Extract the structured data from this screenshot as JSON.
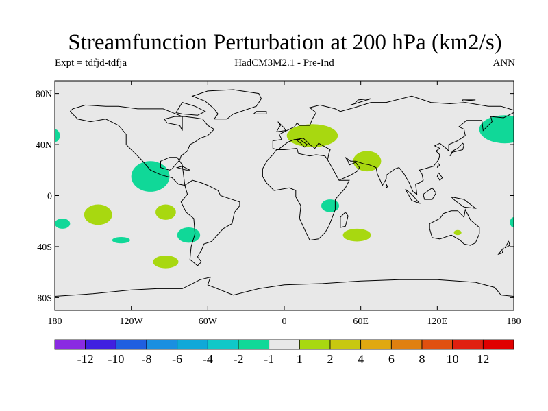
{
  "header": {
    "title": "Streamfunction Perturbation at 200 hPa (km2/s)",
    "left_text": "Expt = tdfjd-tdfja",
    "center_text": "HadCM3M2.1 - Pre-Ind",
    "right_text": "ANN"
  },
  "axes": {
    "y_ticks": [
      {
        "lat": 80,
        "label": "80N"
      },
      {
        "lat": 40,
        "label": "40N"
      },
      {
        "lat": 0,
        "label": "0"
      },
      {
        "lat": -40,
        "label": "40S"
      },
      {
        "lat": -80,
        "label": "80S"
      }
    ],
    "x_ticks": [
      {
        "lon": -180,
        "label": "180"
      },
      {
        "lon": -120,
        "label": "120W"
      },
      {
        "lon": -60,
        "label": "60W"
      },
      {
        "lon": 0,
        "label": "0"
      },
      {
        "lon": 60,
        "label": "60E"
      },
      {
        "lon": 120,
        "label": "120E"
      },
      {
        "lon": 180,
        "label": "180"
      }
    ]
  },
  "colorbar": {
    "colors": [
      "#8a2be2",
      "#4020e0",
      "#1f5fe0",
      "#1a8fe0",
      "#10a8d8",
      "#10c8c8",
      "#10d898",
      "#e8e8e8",
      "#a8d810",
      "#c8c810",
      "#e0a810",
      "#e08010",
      "#e05010",
      "#e02010",
      "#e00000"
    ],
    "labels": [
      "-12",
      "-10",
      "-8",
      "-6",
      "-4",
      "-2",
      "-1",
      "1",
      "2",
      "4",
      "6",
      "8",
      "10",
      "12"
    ]
  },
  "field_blobs": [
    {
      "lon": -180,
      "lat": 47,
      "rlon": 4,
      "rlat": 5,
      "color": "#10d898"
    },
    {
      "lon": -105,
      "lat": 15,
      "rlon": 15,
      "rlat": 12,
      "color": "#10d898"
    },
    {
      "lon": -146,
      "lat": -15,
      "rlon": 11,
      "rlat": 8,
      "color": "#a8d810"
    },
    {
      "lon": -93,
      "lat": -13,
      "rlon": 8,
      "rlat": 6,
      "color": "#a8d810"
    },
    {
      "lon": -174,
      "lat": -22,
      "rlon": 6,
      "rlat": 4,
      "color": "#10d898"
    },
    {
      "lon": -128,
      "lat": -35,
      "rlon": 7,
      "rlat": 2.5,
      "color": "#10d898"
    },
    {
      "lon": -75,
      "lat": -31,
      "rlon": 9,
      "rlat": 6,
      "color": "#10d898"
    },
    {
      "lon": -93,
      "lat": -52,
      "rlon": 10,
      "rlat": 5,
      "color": "#a8d810"
    },
    {
      "lon": 22,
      "lat": 47,
      "rlon": 20,
      "rlat": 9,
      "color": "#a8d810"
    },
    {
      "lon": 65,
      "lat": 27,
      "rlon": 11,
      "rlat": 8,
      "color": "#a8d810"
    },
    {
      "lon": 36,
      "lat": -8,
      "rlon": 7,
      "rlat": 5,
      "color": "#10d898"
    },
    {
      "lon": 57,
      "lat": -31,
      "rlon": 11,
      "rlat": 5,
      "color": "#a8d810"
    },
    {
      "lon": 173,
      "lat": 52,
      "rlon": 20,
      "rlat": 11,
      "color": "#10d898"
    },
    {
      "lon": 136,
      "lat": -29,
      "rlon": 3,
      "rlat": 2,
      "color": "#a8d810"
    },
    {
      "lon": 180,
      "lat": -21,
      "rlon": 3,
      "rlat": 4,
      "color": "#10d898"
    }
  ],
  "coastlines": [
    [
      [
        -168,
        66
      ],
      [
        -162,
        60
      ],
      [
        -152,
        58
      ],
      [
        -140,
        60
      ],
      [
        -130,
        55
      ],
      [
        -124,
        48
      ],
      [
        -124,
        40
      ],
      [
        -118,
        34
      ],
      [
        -112,
        28
      ],
      [
        -105,
        20
      ],
      [
        -96,
        16
      ],
      [
        -88,
        14
      ],
      [
        -83,
        9
      ],
      [
        -78,
        8
      ],
      [
        -80,
        24
      ],
      [
        -84,
        30
      ],
      [
        -90,
        30
      ],
      [
        -97,
        27
      ],
      [
        -97,
        22
      ],
      [
        -90,
        20
      ],
      [
        -88,
        21
      ],
      [
        -82,
        28
      ],
      [
        -81,
        31
      ],
      [
        -76,
        35
      ],
      [
        -74,
        40
      ],
      [
        -70,
        42
      ],
      [
        -66,
        45
      ],
      [
        -60,
        47
      ],
      [
        -55,
        52
      ],
      [
        -60,
        55
      ],
      [
        -64,
        60
      ],
      [
        -70,
        61
      ],
      [
        -78,
        62
      ],
      [
        -86,
        62
      ],
      [
        -94,
        60
      ],
      [
        -92,
        57
      ],
      [
        -82,
        55
      ],
      [
        -80,
        51
      ],
      [
        -80,
        62
      ],
      [
        -95,
        68
      ],
      [
        -115,
        68
      ],
      [
        -130,
        70
      ],
      [
        -140,
        70
      ],
      [
        -156,
        71
      ],
      [
        -166,
        68
      ],
      [
        -168,
        66
      ]
    ],
    [
      [
        -78,
        8
      ],
      [
        -76,
        1
      ],
      [
        -81,
        -5
      ],
      [
        -77,
        -13
      ],
      [
        -71,
        -18
      ],
      [
        -70,
        -30
      ],
      [
        -73,
        -40
      ],
      [
        -74,
        -50
      ],
      [
        -68,
        -55
      ],
      [
        -65,
        -52
      ],
      [
        -68,
        -48
      ],
      [
        -65,
        -43
      ],
      [
        -63,
        -38
      ],
      [
        -57,
        -36
      ],
      [
        -48,
        -26
      ],
      [
        -41,
        -22
      ],
      [
        -39,
        -13
      ],
      [
        -35,
        -8
      ],
      [
        -35,
        -5
      ],
      [
        -44,
        -2
      ],
      [
        -50,
        0
      ],
      [
        -52,
        4
      ],
      [
        -60,
        8
      ],
      [
        -65,
        10
      ],
      [
        -72,
        12
      ],
      [
        -78,
        8
      ]
    ],
    [
      [
        -17,
        15
      ],
      [
        -17,
        21
      ],
      [
        -13,
        28
      ],
      [
        -9,
        32
      ],
      [
        -6,
        36
      ],
      [
        0,
        36
      ],
      [
        10,
        37
      ],
      [
        11,
        33
      ],
      [
        20,
        31
      ],
      [
        25,
        32
      ],
      [
        32,
        31
      ],
      [
        34,
        28
      ],
      [
        38,
        21
      ],
      [
        43,
        12
      ],
      [
        51,
        12
      ],
      [
        48,
        6
      ],
      [
        40,
        -3
      ],
      [
        40,
        -11
      ],
      [
        35,
        -24
      ],
      [
        32,
        -29
      ],
      [
        27,
        -34
      ],
      [
        20,
        -35
      ],
      [
        18,
        -31
      ],
      [
        12,
        -18
      ],
      [
        13,
        -8
      ],
      [
        9,
        -1
      ],
      [
        9,
        4
      ],
      [
        4,
        6
      ],
      [
        -8,
        4
      ],
      [
        -14,
        10
      ],
      [
        -17,
        15
      ]
    ],
    [
      [
        -9,
        37
      ],
      [
        -9,
        43
      ],
      [
        -2,
        44
      ],
      [
        -4,
        48
      ],
      [
        2,
        51
      ],
      [
        8,
        54
      ],
      [
        10,
        57
      ],
      [
        12,
        55
      ],
      [
        20,
        55
      ],
      [
        22,
        60
      ],
      [
        25,
        65
      ],
      [
        20,
        69
      ],
      [
        28,
        71
      ],
      [
        40,
        68
      ],
      [
        44,
        66
      ],
      [
        55,
        69
      ],
      [
        68,
        73
      ],
      [
        80,
        73
      ],
      [
        100,
        78
      ],
      [
        115,
        73
      ],
      [
        130,
        72
      ],
      [
        142,
        73
      ],
      [
        160,
        70
      ],
      [
        170,
        70
      ],
      [
        180,
        67
      ]
    ],
    [
      [
        -9,
        37
      ],
      [
        -5,
        36
      ],
      [
        3,
        42
      ],
      [
        8,
        44
      ],
      [
        12,
        44
      ],
      [
        18,
        40
      ],
      [
        16,
        38
      ],
      [
        13,
        41
      ],
      [
        9,
        44
      ],
      [
        15,
        45
      ],
      [
        20,
        40
      ],
      [
        24,
        37
      ],
      [
        27,
        41
      ],
      [
        36,
        36
      ],
      [
        35,
        33
      ],
      [
        34,
        28
      ]
    ],
    [
      [
        43,
        12
      ],
      [
        45,
        13
      ],
      [
        52,
        16
      ],
      [
        57,
        19
      ],
      [
        59,
        22
      ],
      [
        56,
        26
      ],
      [
        51,
        24
      ],
      [
        50,
        27
      ],
      [
        48,
        30
      ],
      [
        52,
        27
      ],
      [
        56,
        27
      ],
      [
        62,
        25
      ],
      [
        67,
        24
      ],
      [
        72,
        22
      ],
      [
        73,
        17
      ],
      [
        77,
        8
      ],
      [
        80,
        13
      ],
      [
        80,
        16
      ],
      [
        87,
        21
      ],
      [
        90,
        22
      ],
      [
        94,
        17
      ],
      [
        98,
        10
      ],
      [
        101,
        3
      ],
      [
        104,
        1
      ],
      [
        103,
        9
      ],
      [
        106,
        10
      ],
      [
        109,
        12
      ],
      [
        108,
        17
      ],
      [
        106,
        20
      ],
      [
        110,
        21
      ],
      [
        117,
        23
      ],
      [
        121,
        28
      ],
      [
        122,
        32
      ],
      [
        119,
        35
      ],
      [
        122,
        37
      ],
      [
        118,
        39
      ],
      [
        122,
        41
      ],
      [
        127,
        37
      ],
      [
        129,
        35
      ],
      [
        129,
        40
      ],
      [
        136,
        43
      ],
      [
        142,
        47
      ],
      [
        141,
        52
      ],
      [
        137,
        54
      ],
      [
        143,
        59
      ],
      [
        155,
        59
      ],
      [
        156,
        51
      ],
      [
        163,
        58
      ],
      [
        162,
        62
      ],
      [
        172,
        61
      ],
      [
        180,
        65
      ]
    ],
    [
      [
        114,
        -22
      ],
      [
        114,
        -26
      ],
      [
        116,
        -33
      ],
      [
        122,
        -34
      ],
      [
        131,
        -31
      ],
      [
        138,
        -35
      ],
      [
        141,
        -38
      ],
      [
        146,
        -39
      ],
      [
        150,
        -37
      ],
      [
        153,
        -30
      ],
      [
        153,
        -25
      ],
      [
        146,
        -19
      ],
      [
        142,
        -11
      ],
      [
        141,
        -17
      ],
      [
        136,
        -12
      ],
      [
        131,
        -12
      ],
      [
        125,
        -14
      ],
      [
        122,
        -18
      ],
      [
        114,
        -22
      ]
    ],
    [
      [
        -180,
        -79
      ],
      [
        -150,
        -77
      ],
      [
        -120,
        -74
      ],
      [
        -100,
        -73
      ],
      [
        -80,
        -73
      ],
      [
        -66,
        -66
      ],
      [
        -58,
        -64
      ],
      [
        -60,
        -70
      ],
      [
        -40,
        -78
      ],
      [
        -20,
        -73
      ],
      [
        0,
        -70
      ],
      [
        30,
        -69
      ],
      [
        60,
        -67
      ],
      [
        90,
        -66
      ],
      [
        120,
        -66
      ],
      [
        150,
        -68
      ],
      [
        165,
        -72
      ],
      [
        170,
        -78
      ],
      [
        180,
        -79
      ]
    ],
    [
      [
        -55,
        60
      ],
      [
        -45,
        60
      ],
      [
        -40,
        64
      ],
      [
        -22,
        70
      ],
      [
        -18,
        76
      ],
      [
        -20,
        80
      ],
      [
        -40,
        83
      ],
      [
        -60,
        82
      ],
      [
        -72,
        78
      ],
      [
        -62,
        74
      ],
      [
        -55,
        68
      ],
      [
        -52,
        64
      ],
      [
        -55,
        60
      ]
    ],
    [
      [
        44,
        -25
      ],
      [
        48,
        -24
      ],
      [
        50,
        -16
      ],
      [
        48,
        -13
      ],
      [
        44,
        -17
      ],
      [
        44,
        -25
      ]
    ],
    [
      [
        -6,
        50
      ],
      [
        1,
        51
      ],
      [
        0,
        53
      ],
      [
        -3,
        56
      ],
      [
        -5,
        58
      ],
      [
        -3,
        55
      ],
      [
        -5,
        52
      ],
      [
        -6,
        50
      ]
    ],
    [
      [
        130,
        31
      ],
      [
        132,
        34
      ],
      [
        136,
        35
      ],
      [
        140,
        36
      ],
      [
        141,
        40
      ],
      [
        140,
        41
      ],
      [
        136,
        37
      ],
      [
        132,
        35
      ],
      [
        130,
        31
      ]
    ],
    [
      [
        95,
        5
      ],
      [
        100,
        1
      ],
      [
        106,
        -6
      ],
      [
        100,
        -4
      ],
      [
        95,
        5
      ]
    ],
    [
      [
        109,
        1
      ],
      [
        116,
        6
      ],
      [
        119,
        2
      ],
      [
        116,
        -3
      ],
      [
        110,
        -3
      ],
      [
        109,
        1
      ]
    ],
    [
      [
        131,
        -1
      ],
      [
        141,
        -3
      ],
      [
        150,
        -10
      ],
      [
        141,
        -9
      ],
      [
        134,
        -4
      ],
      [
        131,
        -1
      ]
    ],
    [
      [
        -85,
        65
      ],
      [
        -80,
        73
      ],
      [
        -70,
        70
      ],
      [
        -62,
        66
      ],
      [
        -68,
        63
      ],
      [
        -80,
        64
      ],
      [
        -85,
        65
      ]
    ],
    [
      [
        -24,
        64
      ],
      [
        -22,
        66
      ],
      [
        -14,
        66
      ],
      [
        -14,
        64
      ],
      [
        -24,
        64
      ]
    ],
    [
      [
        173,
        -41
      ],
      [
        177,
        -39
      ],
      [
        176,
        -36
      ],
      [
        173,
        -41
      ]
    ],
    [
      [
        172,
        -41
      ],
      [
        168,
        -46
      ],
      [
        171,
        -45
      ],
      [
        172,
        -41
      ]
    ],
    [
      [
        -80,
        23
      ],
      [
        -74,
        20
      ],
      [
        -77,
        20
      ],
      [
        -84,
        22
      ],
      [
        -80,
        23
      ]
    ],
    [
      [
        121,
        18
      ],
      [
        124,
        14
      ],
      [
        122,
        12
      ],
      [
        120,
        15
      ],
      [
        121,
        18
      ]
    ],
    [
      [
        80,
        9
      ],
      [
        81,
        7
      ],
      [
        80,
        6
      ],
      [
        80,
        9
      ]
    ],
    [
      [
        120,
        22
      ],
      [
        121,
        25
      ],
      [
        122,
        24
      ],
      [
        120,
        22
      ]
    ],
    [
      [
        140,
        74
      ],
      [
        150,
        75
      ],
      [
        140,
        75
      ],
      [
        140,
        74
      ]
    ],
    [
      [
        55,
        72
      ],
      [
        58,
        75
      ],
      [
        68,
        76
      ],
      [
        52,
        71
      ],
      [
        55,
        72
      ]
    ]
  ]
}
